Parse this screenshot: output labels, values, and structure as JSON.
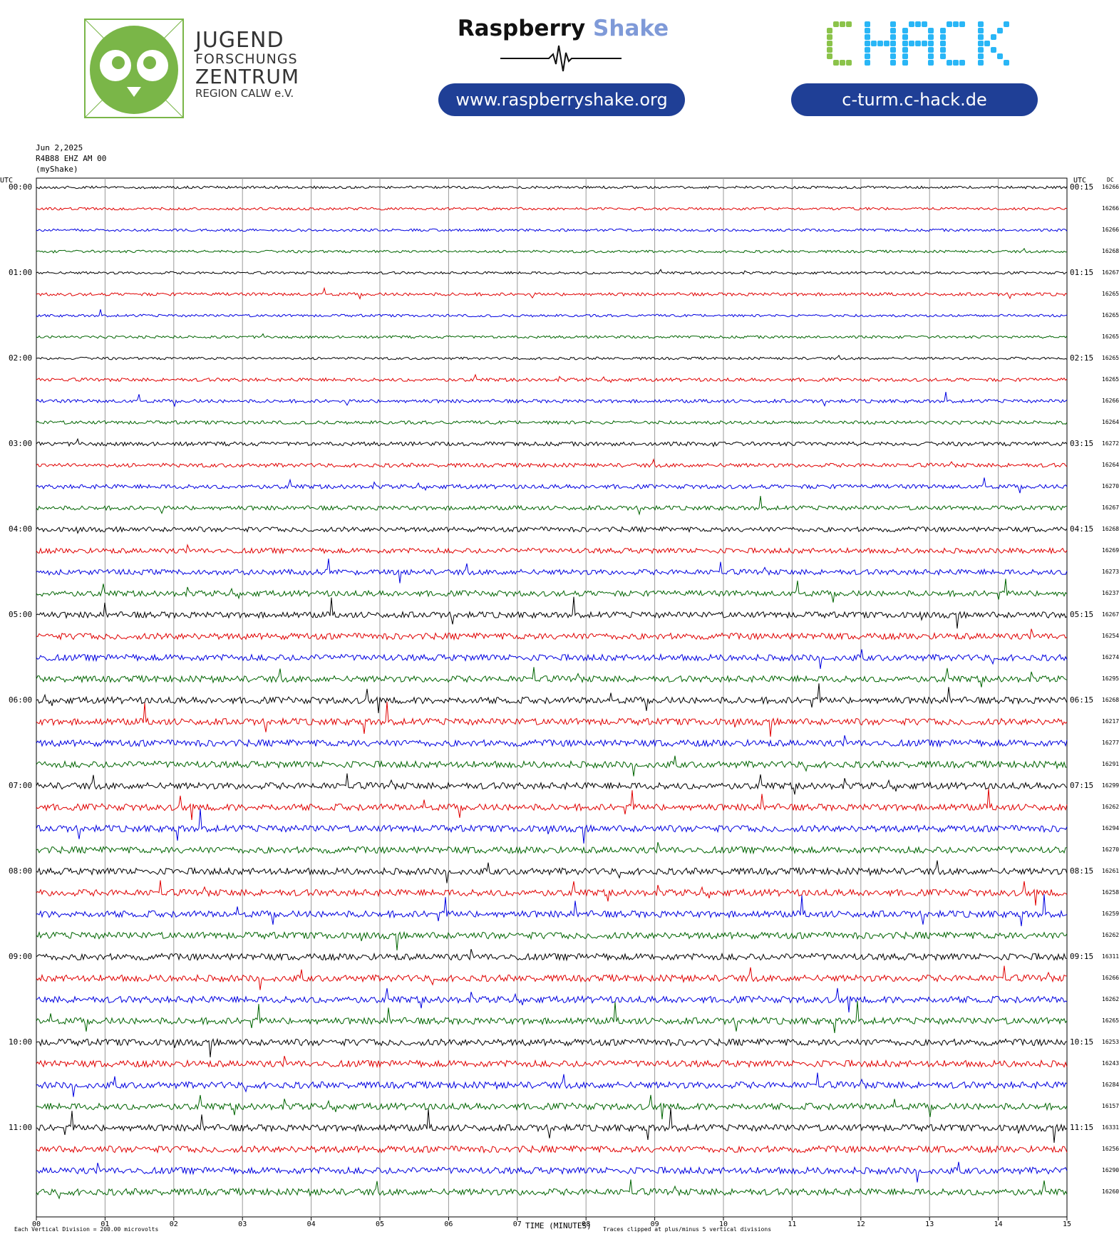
{
  "header": {
    "jfz_logo": {
      "line1": "JUGEND",
      "line2": "FORSCHUNGS",
      "line3": "ZENTRUM",
      "line4": "REGION CALW e.V."
    },
    "raspberry_shake": {
      "word1": "Raspberry",
      "word2": "Shake",
      "url": "www.raspberryshake.org"
    },
    "chack": {
      "logo_text": "CHACK",
      "url": "c-turm.c-hack.de"
    },
    "colors": {
      "jfz_green": "#7ab648",
      "rs_blue": "#7f9ad8",
      "pill_blue": "#1f3f96",
      "chack_green": "#8bc34a",
      "chack_blue": "#29b6f6"
    }
  },
  "station": {
    "date": "Jun 2,2025",
    "channel": "R4B88 EHZ AM 00",
    "source": "(myShake)"
  },
  "chart_data": {
    "type": "line",
    "title": "",
    "left_axis_title": "UTC",
    "right_axis_title": "UTC",
    "dc_title": "DC",
    "xlabel": "TIME (MINUTES)",
    "x_ticks": [
      "00",
      "01",
      "02",
      "03",
      "04",
      "05",
      "06",
      "07",
      "08",
      "09",
      "10",
      "11",
      "12",
      "13",
      "14",
      "15"
    ],
    "xlim": [
      0,
      15
    ],
    "trace_colors": [
      "#000000",
      "#e00000",
      "#0000e0",
      "#006400"
    ],
    "hour_labels_left": [
      "00:00",
      "01:00",
      "02:00",
      "03:00",
      "04:00",
      "05:00",
      "06:00",
      "07:00",
      "08:00",
      "09:00",
      "10:00",
      "11:00"
    ],
    "hour_labels_right": [
      "00:15",
      "01:15",
      "02:15",
      "03:15",
      "04:15",
      "05:15",
      "06:15",
      "07:15",
      "08:15",
      "09:15",
      "10:15",
      "11:15"
    ],
    "dc_values": [
      "16266",
      "16266",
      "16266",
      "16268",
      "16267",
      "16265",
      "16265",
      "16265",
      "16265",
      "16265",
      "16266",
      "16264",
      "16272",
      "16264",
      "16270",
      "16267",
      "16268",
      "16269",
      "16273",
      "16237",
      "16267",
      "16254",
      "16274",
      "16295",
      "16268",
      "16217",
      "16277",
      "16291",
      "16299",
      "16262",
      "16294",
      "16270",
      "16261",
      "16258",
      "16259",
      "16262",
      "16311",
      "16266",
      "16262",
      "16265",
      "16253",
      "16243",
      "16284",
      "16157",
      "16331",
      "16256",
      "16290",
      "16260"
    ],
    "trace_activity": [
      0.3,
      0.3,
      0.3,
      0.3,
      0.3,
      0.4,
      0.3,
      0.3,
      0.3,
      0.45,
      0.45,
      0.45,
      0.55,
      0.55,
      0.6,
      0.6,
      0.7,
      0.75,
      0.8,
      0.85,
      0.9,
      0.95,
      0.95,
      0.95,
      1,
      1,
      1,
      1,
      1,
      1,
      1,
      1,
      1,
      1,
      1,
      1,
      1,
      1,
      1,
      1,
      1,
      1,
      1,
      1,
      1,
      1,
      1,
      1
    ],
    "footer_left": "Each Vertical Division =  200.00 microvolts",
    "footer_right": "Traces clipped at plus/minus 5 vertical divisions"
  }
}
